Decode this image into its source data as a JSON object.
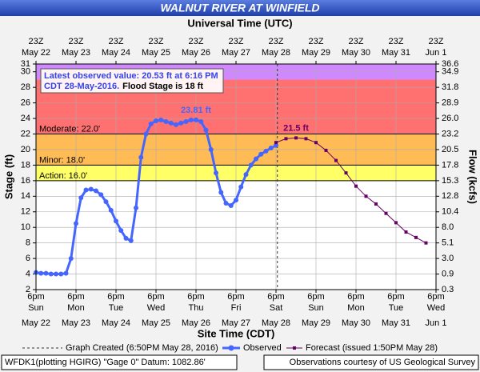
{
  "chart_data": {
    "type": "hydrograph",
    "title": "WALNUT RIVER AT WINFIELD",
    "top_axis_label": "Universal Time (UTC)",
    "x_label": "Site Time (CDT)",
    "y_label": "Stage (ft)",
    "y2_label": "Flow (kcfs)",
    "xlim": [
      "2016-05-22T18:00",
      "2016-06-01T18:00"
    ],
    "xticks": [
      {
        "value": "2016-05-22T18:00",
        "label": [
          "6pm",
          "Sun",
          "May 22"
        ]
      },
      {
        "value": "2016-05-23T18:00",
        "label": [
          "6pm",
          "Mon",
          "May 23"
        ]
      },
      {
        "value": "2016-05-24T18:00",
        "label": [
          "6pm",
          "Tue",
          "May 24"
        ]
      },
      {
        "value": "2016-05-25T18:00",
        "label": [
          "6pm",
          "Wed",
          "May 25"
        ]
      },
      {
        "value": "2016-05-26T18:00",
        "label": [
          "6pm",
          "Thu",
          "May 26"
        ]
      },
      {
        "value": "2016-05-27T18:00",
        "label": [
          "6pm",
          "Fri",
          "May 27"
        ]
      },
      {
        "value": "2016-05-28T18:00",
        "label": [
          "6pm",
          "Sat",
          "May 28"
        ]
      },
      {
        "value": "2016-05-29T18:00",
        "label": [
          "6pm",
          "Sun",
          "May 29"
        ]
      },
      {
        "value": "2016-05-30T18:00",
        "label": [
          "6pm",
          "Mon",
          "May 30"
        ]
      },
      {
        "value": "2016-05-31T18:00",
        "label": [
          "6pm",
          "Tue",
          "May 31"
        ]
      },
      {
        "value": "2016-06-01T18:00",
        "label": [
          "6pm",
          "Wed",
          "Jun 1"
        ]
      }
    ],
    "top_xticks": [
      {
        "value": "2016-05-22T18:00",
        "label": [
          "23Z",
          "May 22"
        ]
      },
      {
        "value": "2016-05-23T18:00",
        "label": [
          "23Z",
          "May 23"
        ]
      },
      {
        "value": "2016-05-24T18:00",
        "label": [
          "23Z",
          "May 24"
        ]
      },
      {
        "value": "2016-05-25T18:00",
        "label": [
          "23Z",
          "May 25"
        ]
      },
      {
        "value": "2016-05-26T18:00",
        "label": [
          "23Z",
          "May 26"
        ]
      },
      {
        "value": "2016-05-27T18:00",
        "label": [
          "23Z",
          "May 27"
        ]
      },
      {
        "value": "2016-05-28T18:00",
        "label": [
          "23Z",
          "May 28"
        ]
      },
      {
        "value": "2016-05-29T18:00",
        "label": [
          "23Z",
          "May 29"
        ]
      },
      {
        "value": "2016-05-30T18:00",
        "label": [
          "23Z",
          "May 30"
        ]
      },
      {
        "value": "2016-05-31T18:00",
        "label": [
          "23Z",
          "May 31"
        ]
      },
      {
        "value": "2016-06-01T18:00",
        "label": [
          "23Z",
          "Jun 1"
        ]
      }
    ],
    "ylim": [
      2,
      31
    ],
    "yticks": [
      2,
      4,
      6,
      8,
      10,
      12,
      14,
      16,
      18,
      20,
      22,
      24,
      26,
      28,
      30,
      31
    ],
    "y2ticks": [
      0.3,
      0.9,
      {
        "value": 3,
        "label": "3.0"
      },
      5.1,
      {
        "value": 8,
        "label": "8.0"
      },
      10.4,
      12.8,
      15.3,
      17.8,
      20.5,
      23.2,
      {
        "value": 26,
        "label": "26.0"
      },
      28.9,
      31.8,
      34.9,
      36.6
    ],
    "grid": true,
    "bands": [
      {
        "from": 16,
        "to": 18,
        "color": "#ffff66"
      },
      {
        "from": 18,
        "to": 22,
        "color": "#ffbb55"
      },
      {
        "from": 22,
        "to": 29,
        "color": "#ff7070"
      },
      {
        "from": 29,
        "to": 31,
        "color": "#d088ff"
      }
    ],
    "thresholds": [
      {
        "label": "Action: 16.0'",
        "value": 16
      },
      {
        "label": "Minor: 18.0'",
        "value": 18
      },
      {
        "label": "Moderate: 22.0'",
        "value": 22
      }
    ],
    "latest_note": [
      "Latest observed value: 20.53 ft at 6:16 PM",
      "CDT 28-May-2016.",
      "Flood Stage is 18 ft"
    ],
    "created": {
      "name": "Graph Created (6:50PM May 28, 2016)",
      "x": "2016-05-28T18:50"
    },
    "series": [
      {
        "name": "Observed",
        "color": "#4466ff",
        "x": [
          "2016-05-22T18:00",
          "2016-05-22T21:00",
          "2016-05-23T00:00",
          "2016-05-23T03:00",
          "2016-05-23T06:00",
          "2016-05-23T09:00",
          "2016-05-23T12:00",
          "2016-05-23T15:00",
          "2016-05-23T18:00",
          "2016-05-23T21:00",
          "2016-05-24T00:00",
          "2016-05-24T03:00",
          "2016-05-24T06:00",
          "2016-05-24T09:00",
          "2016-05-24T12:00",
          "2016-05-24T15:00",
          "2016-05-24T18:00",
          "2016-05-24T21:00",
          "2016-05-25T00:00",
          "2016-05-25T03:00",
          "2016-05-25T06:00",
          "2016-05-25T09:00",
          "2016-05-25T12:00",
          "2016-05-25T15:00",
          "2016-05-25T18:00",
          "2016-05-25T21:00",
          "2016-05-26T00:00",
          "2016-05-26T03:00",
          "2016-05-26T06:00",
          "2016-05-26T09:00",
          "2016-05-26T12:00",
          "2016-05-26T15:00",
          "2016-05-26T18:00",
          "2016-05-26T21:00",
          "2016-05-27T00:00",
          "2016-05-27T03:00",
          "2016-05-27T06:00",
          "2016-05-27T09:00",
          "2016-05-27T12:00",
          "2016-05-27T15:00",
          "2016-05-27T18:00",
          "2016-05-27T21:00",
          "2016-05-28T00:00",
          "2016-05-28T03:00",
          "2016-05-28T06:00",
          "2016-05-28T09:00",
          "2016-05-28T12:00",
          "2016-05-28T15:00",
          "2016-05-28T18:00"
        ],
        "values": [
          4.2,
          4.1,
          4.1,
          4.0,
          4.0,
          4.0,
          4.1,
          6.0,
          10.5,
          13.8,
          14.8,
          14.9,
          14.7,
          14.2,
          13.3,
          12.2,
          10.8,
          9.6,
          8.6,
          8.3,
          12.5,
          19.0,
          22.0,
          23.3,
          23.7,
          23.8,
          23.6,
          23.4,
          23.2,
          23.4,
          23.6,
          23.8,
          23.81,
          23.6,
          22.5,
          20.0,
          17.0,
          14.5,
          13.1,
          12.8,
          13.5,
          15.2,
          16.8,
          18.0,
          18.8,
          19.4,
          19.8,
          20.2,
          20.53
        ],
        "value_labels": [
          null,
          null,
          null,
          null,
          null,
          null,
          null,
          null,
          null,
          null,
          null,
          null,
          null,
          null,
          null,
          null,
          null,
          null,
          null,
          null,
          null,
          null,
          null,
          null,
          null,
          null,
          null,
          null,
          null,
          null,
          null,
          null,
          "23.81 ft",
          null,
          null,
          null,
          null,
          null,
          null,
          null,
          null,
          null,
          null,
          null,
          null,
          null,
          null,
          null,
          null
        ]
      },
      {
        "name": "Forecast (issued 1:50PM May 28)",
        "color": "#660066",
        "x": [
          "2016-05-28T18:00",
          "2016-05-29T00:00",
          "2016-05-29T06:00",
          "2016-05-29T12:00",
          "2016-05-29T18:00",
          "2016-05-30T00:00",
          "2016-05-30T06:00",
          "2016-05-30T12:00",
          "2016-05-30T18:00",
          "2016-05-31T00:00",
          "2016-05-31T06:00",
          "2016-05-31T12:00",
          "2016-05-31T18:00",
          "2016-06-01T00:00",
          "2016-06-01T06:00",
          "2016-06-01T12:00"
        ],
        "values": [
          20.9,
          21.4,
          21.5,
          21.4,
          20.9,
          19.9,
          18.6,
          17.0,
          15.3,
          14.0,
          13.0,
          11.8,
          10.6,
          9.4,
          8.7,
          8.0
        ],
        "value_labels": [
          null,
          null,
          "21.5 ft",
          null,
          null,
          null,
          null,
          null,
          null,
          null,
          null,
          null,
          null,
          null,
          null,
          null
        ]
      }
    ],
    "footer": [
      "WFDK1(plotting HGIRG) \"Gage 0\" Datum: 1082.86'",
      "Observations courtesy of US Geological Survey"
    ]
  }
}
